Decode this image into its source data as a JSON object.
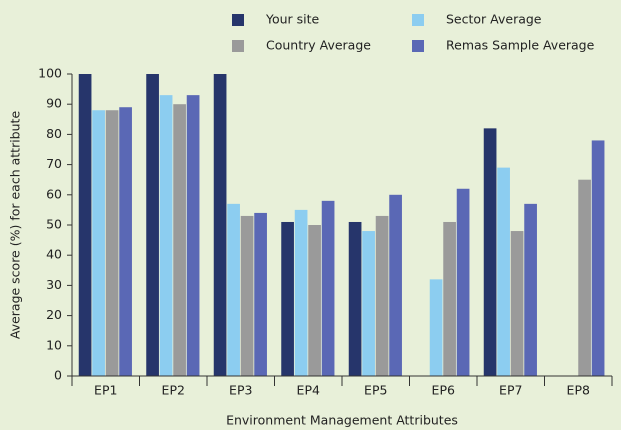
{
  "chart_data": {
    "type": "bar",
    "xlabel": "Environment Management Attributes",
    "ylabel": "Average score (%) for each attribute",
    "categories": [
      "EP1",
      "EP2",
      "EP3",
      "EP4",
      "EP5",
      "EP6",
      "EP7",
      "EP8"
    ],
    "series": [
      {
        "name": "Your site",
        "color": "#26356b",
        "values": [
          100,
          100,
          100,
          51,
          51,
          null,
          82,
          null
        ]
      },
      {
        "name": "Sector Average",
        "color": "#8ccdf0",
        "values": [
          88,
          93,
          57,
          55,
          48,
          32,
          69,
          null
        ]
      },
      {
        "name": "Country Average",
        "color": "#9a9a9a",
        "values": [
          88,
          90,
          53,
          50,
          53,
          51,
          48,
          65
        ]
      },
      {
        "name": "Remas Sample Average",
        "color": "#5a68b5",
        "values": [
          89,
          93,
          54,
          58,
          60,
          62,
          57,
          78
        ]
      }
    ],
    "ylim": [
      0,
      100
    ],
    "yticks": [
      0,
      10,
      20,
      30,
      40,
      50,
      60,
      70,
      80,
      90,
      100
    ],
    "legend": "top"
  }
}
